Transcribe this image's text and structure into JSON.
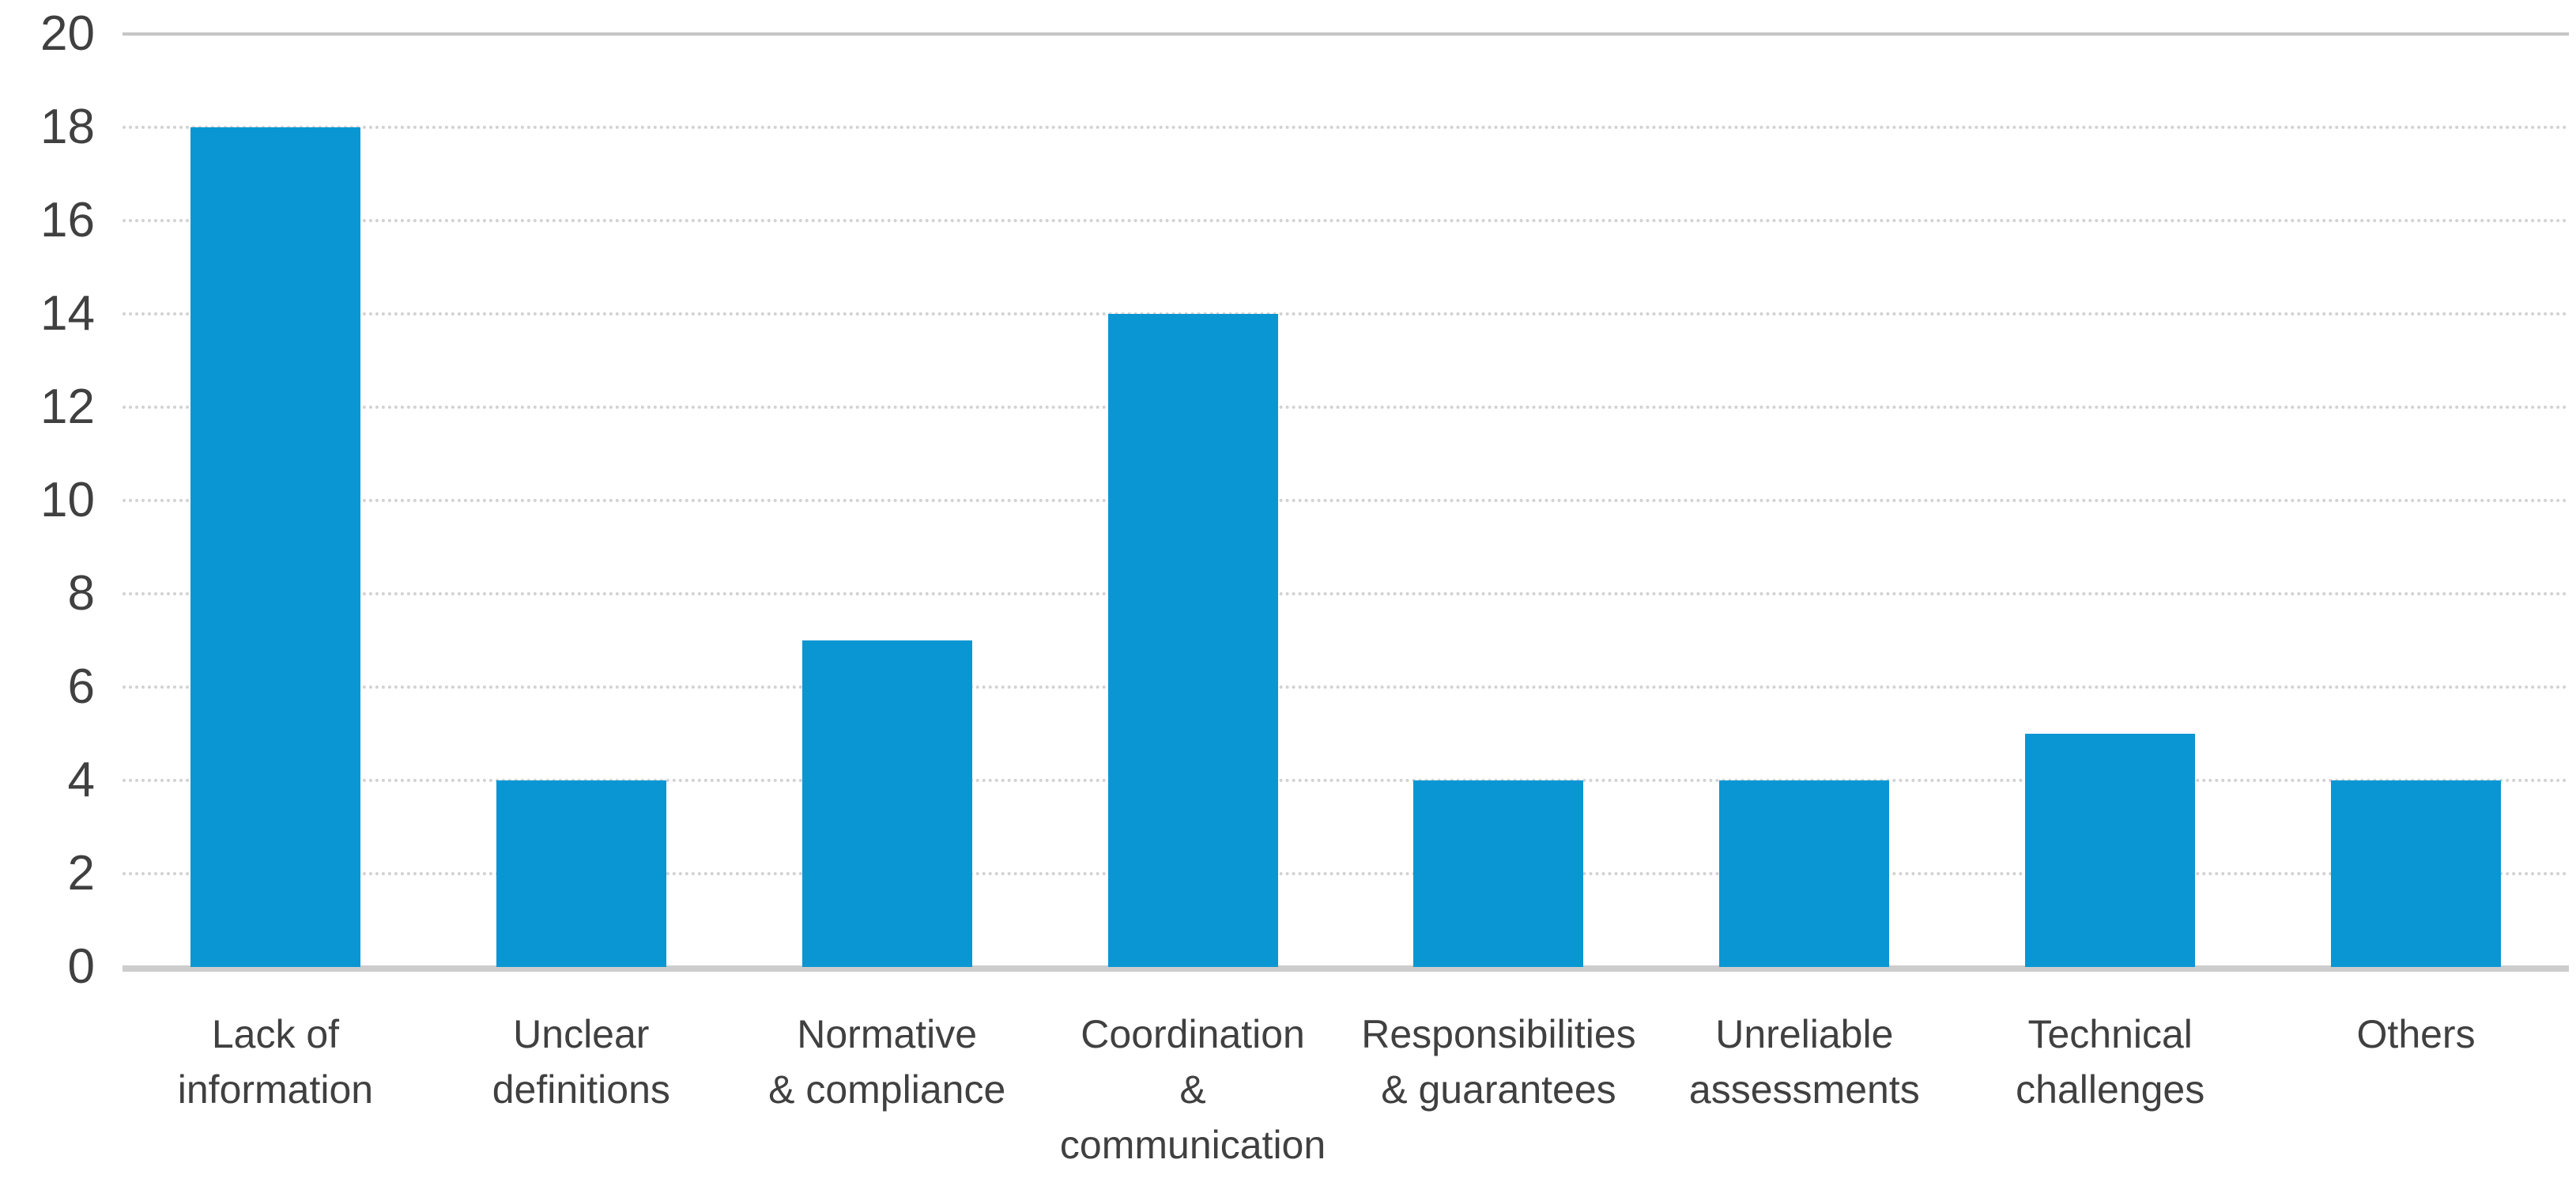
{
  "chart_data": {
    "type": "bar",
    "title": "",
    "xlabel": "",
    "ylabel": "",
    "categories": [
      "Lack of\ninformation",
      "Unclear\ndefinitions",
      "Normative\n& compliance",
      "Coordination\n&\ncommunication",
      "Responsibilities\n& guarantees",
      "Unreliable\nassessments",
      "Technical\nchallenges",
      "Others"
    ],
    "values": [
      18,
      4,
      7,
      14,
      4,
      4,
      5,
      4
    ],
    "ylim": [
      0,
      20
    ],
    "yticks": [
      0,
      2,
      4,
      6,
      8,
      10,
      12,
      14,
      16,
      18,
      20
    ],
    "grid": "horizontal",
    "legend": "none",
    "bar_color": "#0A96D3",
    "gridline_color": "#D2D2D2",
    "axis_line_color": "#CDCDCD",
    "text_color": "#404040"
  }
}
